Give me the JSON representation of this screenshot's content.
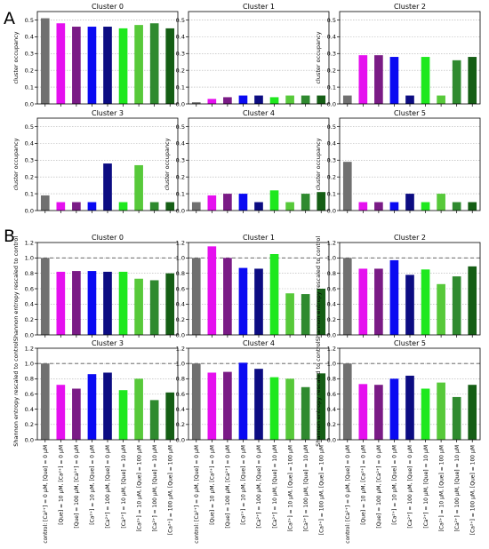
{
  "panel_letters": [
    "A",
    "B"
  ],
  "colors": [
    "#707070",
    "#e510ef",
    "#7a1b86",
    "#0a0af2",
    "#0c0c82",
    "#1ee81e",
    "#57c93a",
    "#2f8a2f",
    "#155e15"
  ],
  "chart_data": [
    {
      "type": "bar",
      "title": "Cluster 0",
      "panel": "A",
      "xlabel": "",
      "ylabel": "cluster occupancy",
      "ylim": [
        0,
        0.55
      ],
      "yticks": [
        0,
        0.1,
        0.2,
        0.3,
        0.4,
        0.5
      ],
      "grid": "y",
      "refline": null,
      "categories": [
        "control: [Ca²⁺] = 0 μM, [Que] = 0 μM",
        "[Que] = 10 μM, [Ca²⁺] = 0 μM",
        "[Que] = 100 μM, [Ca²⁺] = 0 μM",
        "[Ca²⁺] = 10 μM, [Que] = 0 μM",
        "[Ca²⁺] = 100 μM, [Que] = 0 μM",
        "[Ca²⁺] = 10 μM, [Que] = 10 μM",
        "[Ca²⁺] = 10 μM, [Que] = 100 μM",
        "[Ca²⁺] = 100 μM, [Que] = 10 μM",
        "[Ca²⁺] = 100 μM, [Que] = 100 μM"
      ],
      "values": [
        0.51,
        0.48,
        0.46,
        0.46,
        0.46,
        0.45,
        0.47,
        0.48,
        0.45
      ]
    },
    {
      "type": "bar",
      "title": "Cluster 1",
      "panel": "A",
      "xlabel": "",
      "ylabel": "",
      "ylim": [
        0,
        0.55
      ],
      "yticks": [
        0,
        0.1,
        0.2,
        0.3,
        0.4,
        0.5
      ],
      "grid": "y",
      "refline": null,
      "categories": [
        "control: [Ca²⁺] = 0 μM, [Que] = 0 μM",
        "[Que] = 10 μM, [Ca²⁺] = 0 μM",
        "[Que] = 100 μM, [Ca²⁺] = 0 μM",
        "[Ca²⁺] = 10 μM, [Que] = 0 μM",
        "[Ca²⁺] = 100 μM, [Que] = 0 μM",
        "[Ca²⁺] = 10 μM, [Que] = 10 μM",
        "[Ca²⁺] = 10 μM, [Que] = 100 μM",
        "[Ca²⁺] = 100 μM, [Que] = 10 μM",
        "[Ca²⁺] = 100 μM, [Que] = 100 μM"
      ],
      "values": [
        0.01,
        0.03,
        0.04,
        0.05,
        0.05,
        0.04,
        0.05,
        0.05,
        0.05
      ]
    },
    {
      "type": "bar",
      "title": "Cluster 2",
      "panel": "A",
      "xlabel": "",
      "ylabel": "cluster occupancy",
      "ylim": [
        0,
        0.55
      ],
      "yticks": [
        0,
        0.1,
        0.2,
        0.3,
        0.4,
        0.5
      ],
      "grid": "y",
      "refline": null,
      "categories": [
        "control: [Ca²⁺] = 0 μM, [Que] = 0 μM",
        "[Que] = 10 μM, [Ca²⁺] = 0 μM",
        "[Que] = 100 μM, [Ca²⁺] = 0 μM",
        "[Ca²⁺] = 10 μM, [Que] = 0 μM",
        "[Ca²⁺] = 100 μM, [Que] = 0 μM",
        "[Ca²⁺] = 10 μM, [Que] = 10 μM",
        "[Ca²⁺] = 10 μM, [Que] = 100 μM",
        "[Ca²⁺] = 100 μM, [Que] = 10 μM",
        "[Ca²⁺] = 100 μM, [Que] = 100 μM"
      ],
      "values": [
        0.05,
        0.29,
        0.29,
        0.28,
        0.05,
        0.28,
        0.05,
        0.26,
        0.28
      ]
    },
    {
      "type": "bar",
      "title": "Cluster 3",
      "panel": "A",
      "xlabel": "",
      "ylabel": "cluster occupancy",
      "ylim": [
        0,
        0.55
      ],
      "yticks": [
        0,
        0.1,
        0.2,
        0.3,
        0.4,
        0.5
      ],
      "grid": "y",
      "refline": null,
      "categories": [
        "control: [Ca²⁺] = 0 μM, [Que] = 0 μM",
        "[Que] = 10 μM, [Ca²⁺] = 0 μM",
        "[Que] = 100 μM, [Ca²⁺] = 0 μM",
        "[Ca²⁺] = 10 μM, [Que] = 0 μM",
        "[Ca²⁺] = 100 μM, [Que] = 0 μM",
        "[Ca²⁺] = 10 μM, [Que] = 10 μM",
        "[Ca²⁺] = 10 μM, [Que] = 100 μM",
        "[Ca²⁺] = 100 μM, [Que] = 10 μM",
        "[Ca²⁺] = 100 μM, [Que] = 100 μM"
      ],
      "values": [
        0.09,
        0.05,
        0.05,
        0.05,
        0.28,
        0.05,
        0.27,
        0.05,
        0.05
      ]
    },
    {
      "type": "bar",
      "title": "Cluster 4",
      "panel": "A",
      "xlabel": "",
      "ylabel": "cluster occupancy",
      "ylim": [
        0,
        0.55
      ],
      "yticks": [
        0,
        0.1,
        0.2,
        0.3,
        0.4,
        0.5
      ],
      "grid": "y",
      "refline": null,
      "categories": [
        "control: [Ca²⁺] = 0 μM, [Que] = 0 μM",
        "[Que] = 10 μM, [Ca²⁺] = 0 μM",
        "[Que] = 100 μM, [Ca²⁺] = 0 μM",
        "[Ca²⁺] = 10 μM, [Que] = 0 μM",
        "[Ca²⁺] = 100 μM, [Que] = 0 μM",
        "[Ca²⁺] = 10 μM, [Que] = 10 μM",
        "[Ca²⁺] = 10 μM, [Que] = 100 μM",
        "[Ca²⁺] = 100 μM, [Que] = 10 μM",
        "[Ca²⁺] = 100 μM, [Que] = 100 μM"
      ],
      "values": [
        0.05,
        0.09,
        0.1,
        0.1,
        0.05,
        0.12,
        0.05,
        0.1,
        0.11
      ]
    },
    {
      "type": "bar",
      "title": "Cluster 5",
      "panel": "A",
      "xlabel": "",
      "ylabel": "cluster occupancy",
      "ylim": [
        0,
        0.55
      ],
      "yticks": [
        0,
        0.1,
        0.2,
        0.3,
        0.4,
        0.5
      ],
      "grid": "y",
      "refline": null,
      "categories": [
        "control: [Ca²⁺] = 0 μM, [Que] = 0 μM",
        "[Que] = 10 μM, [Ca²⁺] = 0 μM",
        "[Que] = 100 μM, [Ca²⁺] = 0 μM",
        "[Ca²⁺] = 10 μM, [Que] = 0 μM",
        "[Ca²⁺] = 100 μM, [Que] = 0 μM",
        "[Ca²⁺] = 10 μM, [Que] = 10 μM",
        "[Ca²⁺] = 10 μM, [Que] = 100 μM",
        "[Ca²⁺] = 100 μM, [Que] = 10 μM",
        "[Ca²⁺] = 100 μM, [Que] = 100 μM"
      ],
      "values": [
        0.29,
        0.05,
        0.05,
        0.05,
        0.1,
        0.05,
        0.1,
        0.05,
        0.05
      ]
    },
    {
      "type": "bar",
      "title": "Cluster 0",
      "panel": "B",
      "xlabel": "",
      "ylabel": "Shannon entropy rescaled to control",
      "ylim": [
        0,
        1.2
      ],
      "yticks": [
        0,
        0.2,
        0.4,
        0.6,
        0.8,
        1.0,
        1.2
      ],
      "grid": "y",
      "refline": 1.0,
      "categories": [
        "control: [Ca²⁺] = 0 μM, [Que] = 0 μM",
        "[Que] = 10 μM, [Ca²⁺] = 0 μM",
        "[Que] = 100 μM, [Ca²⁺] = 0 μM",
        "[Ca²⁺] = 10 μM, [Que] = 0 μM",
        "[Ca²⁺] = 100 μM, [Que] = 0 μM",
        "[Ca²⁺] = 10 μM, [Que] = 10 μM",
        "[Ca²⁺] = 10 μM, [Que] = 100 μM",
        "[Ca²⁺] = 100 μM, [Que] = 10 μM",
        "[Ca²⁺] = 100 μM, [Que] = 100 μM"
      ],
      "values": [
        1.0,
        0.82,
        0.83,
        0.83,
        0.82,
        0.82,
        0.73,
        0.71,
        0.8
      ]
    },
    {
      "type": "bar",
      "title": "Cluster 1",
      "panel": "B",
      "xlabel": "",
      "ylabel": "",
      "ylim": [
        0,
        1.2
      ],
      "yticks": [
        0,
        0.2,
        0.4,
        0.6,
        0.8,
        1.0,
        1.2
      ],
      "grid": "y",
      "refline": 1.0,
      "categories": [
        "control: [Ca²⁺] = 0 μM, [Que] = 0 μM",
        "[Que] = 10 μM, [Ca²⁺] = 0 μM",
        "[Que] = 100 μM, [Ca²⁺] = 0 μM",
        "[Ca²⁺] = 10 μM, [Que] = 0 μM",
        "[Ca²⁺] = 100 μM, [Que] = 0 μM",
        "[Ca²⁺] = 10 μM, [Que] = 10 μM",
        "[Ca²⁺] = 10 μM, [Que] = 100 μM",
        "[Ca²⁺] = 100 μM, [Que] = 10 μM",
        "[Ca²⁺] = 100 μM, [Que] = 100 μM"
      ],
      "values": [
        1.0,
        1.15,
        1.0,
        0.87,
        0.86,
        1.05,
        0.54,
        0.53,
        0.6
      ]
    },
    {
      "type": "bar",
      "title": "Cluster 2",
      "panel": "B",
      "xlabel": "",
      "ylabel": "Shannon entropy rescaled to control",
      "ylim": [
        0,
        1.2
      ],
      "yticks": [
        0,
        0.2,
        0.4,
        0.6,
        0.8,
        1.0,
        1.2
      ],
      "grid": "y",
      "refline": 1.0,
      "categories": [
        "control: [Ca²⁺] = 0 μM, [Que] = 0 μM",
        "[Que] = 10 μM, [Ca²⁺] = 0 μM",
        "[Que] = 100 μM, [Ca²⁺] = 0 μM",
        "[Ca²⁺] = 10 μM, [Que] = 0 μM",
        "[Ca²⁺] = 100 μM, [Que] = 0 μM",
        "[Ca²⁺] = 10 μM, [Que] = 10 μM",
        "[Ca²⁺] = 10 μM, [Que] = 100 μM",
        "[Ca²⁺] = 100 μM, [Que] = 10 μM",
        "[Ca²⁺] = 100 μM, [Que] = 100 μM"
      ],
      "values": [
        1.0,
        0.86,
        0.86,
        0.97,
        0.78,
        0.85,
        0.66,
        0.76,
        0.89
      ]
    },
    {
      "type": "bar",
      "title": "Cluster 3",
      "panel": "B",
      "xlabel": "",
      "ylabel": "Shannon entropy rescaled to control",
      "ylim": [
        0,
        1.2
      ],
      "yticks": [
        0,
        0.2,
        0.4,
        0.6,
        0.8,
        1.0,
        1.2
      ],
      "grid": "y",
      "refline": 1.0,
      "categories": [
        "control: [Ca²⁺] = 0 μM, [Que] = 0 μM",
        "[Que] = 10 μM, [Ca²⁺] = 0 μM",
        "[Que] = 100 μM, [Ca²⁺] = 0 μM",
        "[Ca²⁺] = 10 μM, [Que] = 0 μM",
        "[Ca²⁺] = 100 μM, [Que] = 0 μM",
        "[Ca²⁺] = 10 μM, [Que] = 10 μM",
        "[Ca²⁺] = 10 μM, [Que] = 100 μM",
        "[Ca²⁺] = 100 μM, [Que] = 10 μM",
        "[Ca²⁺] = 100 μM, [Que] = 100 μM"
      ],
      "values": [
        1.0,
        0.72,
        0.67,
        0.86,
        0.88,
        0.65,
        0.8,
        0.52,
        0.62
      ]
    },
    {
      "type": "bar",
      "title": "Cluster 4",
      "panel": "B",
      "xlabel": "",
      "ylabel": "",
      "ylim": [
        0,
        1.2
      ],
      "yticks": [
        0,
        0.2,
        0.4,
        0.6,
        0.8,
        1.0,
        1.2
      ],
      "grid": "y",
      "refline": 1.0,
      "categories": [
        "control: [Ca²⁺] = 0 μM, [Que] = 0 μM",
        "[Que] = 10 μM, [Ca²⁺] = 0 μM",
        "[Que] = 100 μM, [Ca²⁺] = 0 μM",
        "[Ca²⁺] = 10 μM, [Que] = 0 μM",
        "[Ca²⁺] = 100 μM, [Que] = 0 μM",
        "[Ca²⁺] = 10 μM, [Que] = 10 μM",
        "[Ca²⁺] = 10 μM, [Que] = 100 μM",
        "[Ca²⁺] = 100 μM, [Que] = 10 μM",
        "[Ca²⁺] = 100 μM, [Que] = 100 μM"
      ],
      "values": [
        1.0,
        0.88,
        0.89,
        1.01,
        0.93,
        0.82,
        0.8,
        0.69,
        0.87
      ]
    },
    {
      "type": "bar",
      "title": "Cluster 5",
      "panel": "B",
      "xlabel": "",
      "ylabel": "Shannon entropy rescaled to control",
      "ylim": [
        0,
        1.2
      ],
      "yticks": [
        0,
        0.2,
        0.4,
        0.6,
        0.8,
        1.0,
        1.2
      ],
      "grid": "y",
      "refline": 1.0,
      "categories": [
        "control: [Ca²⁺] = 0 μM, [Que] = 0 μM",
        "[Que] = 10 μM, [Ca²⁺] = 0 μM",
        "[Que] = 100 μM, [Ca²⁺] = 0 μM",
        "[Ca²⁺] = 10 μM, [Que] = 0 μM",
        "[Ca²⁺] = 100 μM, [Que] = 0 μM",
        "[Ca²⁺] = 10 μM, [Que] = 10 μM",
        "[Ca²⁺] = 10 μM, [Que] = 100 μM",
        "[Ca²⁺] = 100 μM, [Que] = 10 μM",
        "[Ca²⁺] = 100 μM, [Que] = 100 μM"
      ],
      "values": [
        1.0,
        0.73,
        0.72,
        0.8,
        0.84,
        0.67,
        0.75,
        0.56,
        0.72
      ]
    }
  ]
}
